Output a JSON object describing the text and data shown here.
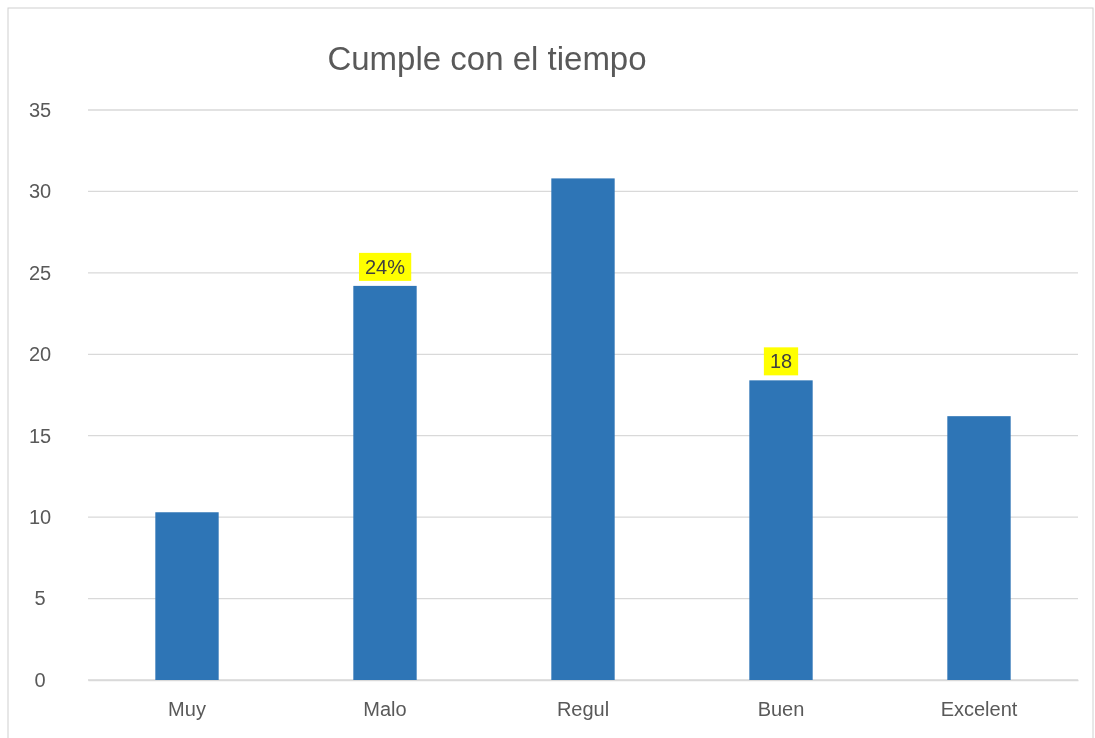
{
  "chart_data": {
    "type": "bar",
    "title": "Cumple con el tiempo",
    "categories": [
      "Muy",
      "Malo",
      "Regul",
      "Buen",
      "Excelent"
    ],
    "values": [
      10.3,
      24.2,
      30.8,
      18.4,
      16.2
    ],
    "color": "#2e75b6",
    "value_labels": [
      null,
      "24%",
      null,
      "18",
      null
    ],
    "ylim": [
      0,
      35
    ],
    "yticks": [
      0,
      5,
      10,
      15,
      20,
      25,
      30,
      35
    ],
    "grid": "y"
  }
}
